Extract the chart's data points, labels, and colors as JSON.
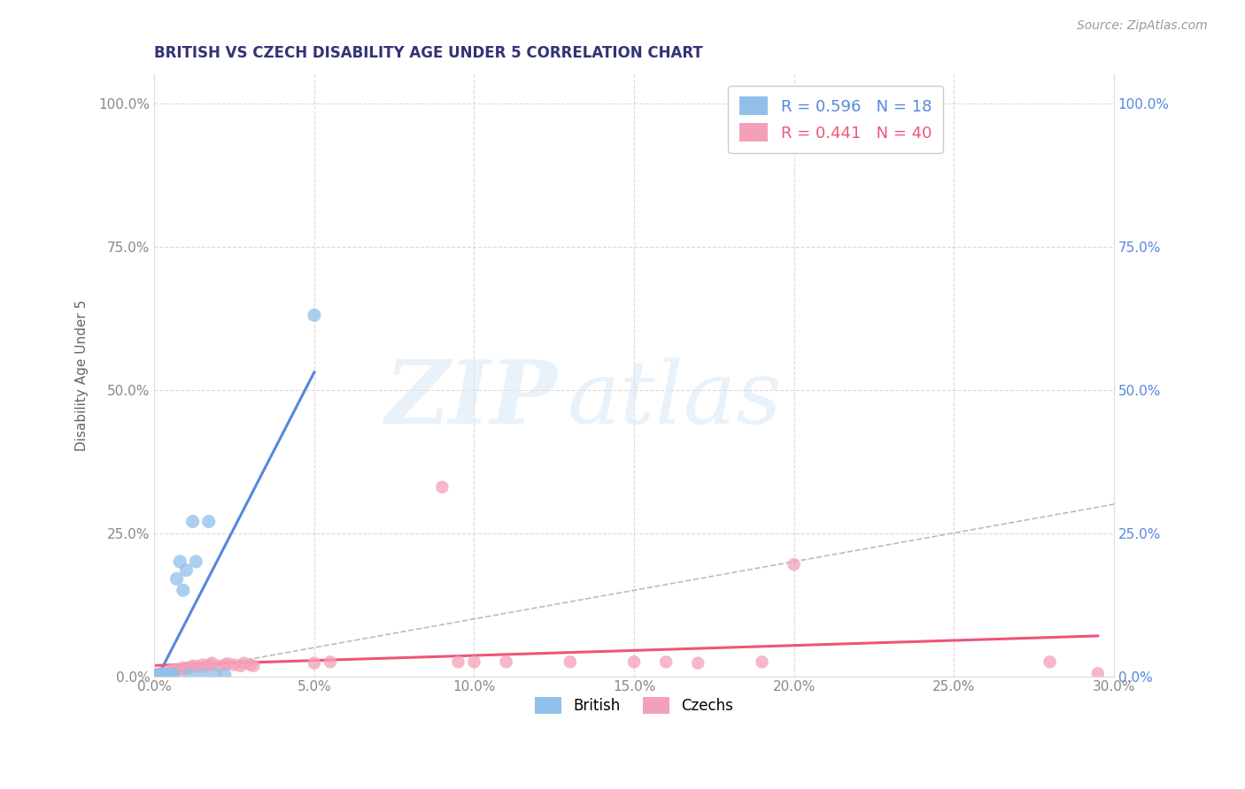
{
  "title": "BRITISH VS CZECH DISABILITY AGE UNDER 5 CORRELATION CHART",
  "source": "Source: ZipAtlas.com",
  "ylabel": "Disability Age Under 5",
  "xlim": [
    0.0,
    0.3
  ],
  "ylim": [
    0.0,
    1.05
  ],
  "yticks": [
    0.0,
    0.25,
    0.5,
    0.75,
    1.0
  ],
  "xticks": [
    0.0,
    0.05,
    0.1,
    0.15,
    0.2,
    0.25,
    0.3
  ],
  "watermark_zip": "ZIP",
  "watermark_atlas": "atlas",
  "legend_blue_r": "R = 0.596",
  "legend_blue_n": "N = 18",
  "legend_pink_r": "R = 0.441",
  "legend_pink_n": "N = 40",
  "british_color": "#90C0EA",
  "czech_color": "#F4A0B8",
  "diag_line_color": "#BBBBBB",
  "british_line_color": "#5588DD",
  "czech_line_color": "#EE5577",
  "british_scatter_x": [
    0.001,
    0.002,
    0.003,
    0.004,
    0.005,
    0.006,
    0.007,
    0.008,
    0.009,
    0.01,
    0.011,
    0.012,
    0.013,
    0.015,
    0.017,
    0.019,
    0.022,
    0.05
  ],
  "british_scatter_y": [
    0.003,
    0.004,
    0.002,
    0.003,
    0.003,
    0.004,
    0.17,
    0.2,
    0.15,
    0.185,
    0.003,
    0.27,
    0.2,
    0.003,
    0.27,
    0.003,
    0.003,
    0.63
  ],
  "czech_scatter_x": [
    0.001,
    0.002,
    0.003,
    0.004,
    0.005,
    0.005,
    0.006,
    0.007,
    0.008,
    0.009,
    0.01,
    0.011,
    0.012,
    0.013,
    0.015,
    0.016,
    0.017,
    0.018,
    0.02,
    0.022,
    0.023,
    0.025,
    0.027,
    0.028,
    0.03,
    0.031,
    0.05,
    0.055,
    0.09,
    0.095,
    0.1,
    0.11,
    0.13,
    0.15,
    0.16,
    0.17,
    0.19,
    0.2,
    0.28,
    0.295
  ],
  "czech_scatter_y": [
    0.003,
    0.004,
    0.003,
    0.003,
    0.004,
    0.01,
    0.01,
    0.012,
    0.01,
    0.015,
    0.013,
    0.015,
    0.018,
    0.017,
    0.02,
    0.017,
    0.02,
    0.023,
    0.018,
    0.02,
    0.022,
    0.02,
    0.018,
    0.023,
    0.02,
    0.018,
    0.023,
    0.025,
    0.33,
    0.025,
    0.025,
    0.025,
    0.025,
    0.025,
    0.025,
    0.023,
    0.025,
    0.195,
    0.025,
    0.005
  ],
  "background_color": "#FFFFFF",
  "grid_color": "#DDDDDD",
  "legend_box_color": "#FFFFFF",
  "right_axis_color": "#5588DD",
  "left_axis_tick_color": "#888888",
  "title_color": "#333377"
}
